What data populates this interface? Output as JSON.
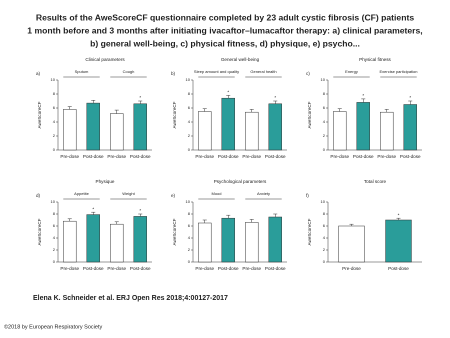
{
  "title": [
    "Results of the AweScoreCF questionnaire completed by 23 adult cystic fibrosis (CF) patients",
    "1 month before and 3 months after initiating ivacaftor–lumacaftor therapy: a) clinical parameters,",
    "b) general well-being, c) physical fitness, d) physique, e) psycho..."
  ],
  "citation": "Elena K. Schneider et al. ERJ Open Res 2018;4:00127-2017",
  "copyright": "©2018 by European Respiratory Society",
  "chart_data": [
    {
      "type": "bar",
      "label": "a)",
      "title": "Clinical parameters",
      "groups": [
        "Sputum",
        "Cough"
      ],
      "y_label": "AweScoreCF",
      "categories": [
        "Pre-dose",
        "Post-dose",
        "Pre-dose",
        "Post-dose"
      ],
      "values": [
        5.8,
        6.7,
        5.2,
        6.6
      ],
      "errors": [
        0.4,
        0.4,
        0.5,
        0.4
      ],
      "colors": [
        "#ffffff",
        "#2a9d9a",
        "#ffffff",
        "#2a9d9a"
      ],
      "annotations": [
        {
          "bar": 3,
          "text": "*"
        }
      ],
      "ylim": [
        0,
        10
      ],
      "yticks": [
        0,
        2,
        4,
        6,
        8,
        10
      ]
    },
    {
      "type": "bar",
      "label": "b)",
      "title": "General well-being",
      "groups": [
        "Sleep amount and quality",
        "General health"
      ],
      "y_label": "AweScoreCF",
      "categories": [
        "Pre-dose",
        "Post-dose",
        "Pre-dose",
        "Post-dose"
      ],
      "values": [
        5.5,
        7.4,
        5.4,
        6.6
      ],
      "errors": [
        0.4,
        0.4,
        0.4,
        0.4
      ],
      "colors": [
        "#ffffff",
        "#2a9d9a",
        "#ffffff",
        "#2a9d9a"
      ],
      "annotations": [
        {
          "bar": 1,
          "text": "*"
        },
        {
          "bar": 3,
          "text": "*"
        }
      ],
      "ylim": [
        0,
        10
      ],
      "yticks": [
        0,
        2,
        4,
        6,
        8,
        10
      ]
    },
    {
      "type": "bar",
      "label": "c)",
      "title": "Physical fitness",
      "groups": [
        "Energy",
        "Exercise participation"
      ],
      "y_label": "AweScoreCF",
      "categories": [
        "Pre-dose",
        "Post-dose",
        "Pre-dose",
        "Post-dose"
      ],
      "values": [
        5.5,
        6.8,
        5.4,
        6.5
      ],
      "errors": [
        0.4,
        0.5,
        0.4,
        0.5
      ],
      "colors": [
        "#ffffff",
        "#2a9d9a",
        "#ffffff",
        "#2a9d9a"
      ],
      "annotations": [
        {
          "bar": 1,
          "text": "*"
        },
        {
          "bar": 3,
          "text": "*"
        }
      ],
      "ylim": [
        0,
        10
      ],
      "yticks": [
        0,
        2,
        4,
        6,
        8,
        10
      ]
    },
    {
      "type": "bar",
      "label": "d)",
      "title": "Physique",
      "groups": [
        "Appetite",
        "Weight"
      ],
      "y_label": "AweScoreCF",
      "categories": [
        "Pre-dose",
        "Post-dose",
        "Pre-dose",
        "Post-dose"
      ],
      "values": [
        6.8,
        7.9,
        6.3,
        7.6
      ],
      "errors": [
        0.4,
        0.4,
        0.4,
        0.4
      ],
      "colors": [
        "#ffffff",
        "#2a9d9a",
        "#ffffff",
        "#2a9d9a"
      ],
      "annotations": [
        {
          "bar": 1,
          "text": "*"
        },
        {
          "bar": 3,
          "text": "*"
        }
      ],
      "ylim": [
        0,
        10
      ],
      "yticks": [
        0,
        2,
        4,
        6,
        8,
        10
      ]
    },
    {
      "type": "bar",
      "label": "e)",
      "title": "Psychological parameters",
      "groups": [
        "Mood",
        "Anxiety"
      ],
      "y_label": "AweScoreCF",
      "categories": [
        "Pre-dose",
        "Post-dose",
        "Pre-dose",
        "Post-dose"
      ],
      "values": [
        6.5,
        7.3,
        6.6,
        7.5
      ],
      "errors": [
        0.5,
        0.5,
        0.5,
        0.5
      ],
      "colors": [
        "#ffffff",
        "#2a9d9a",
        "#ffffff",
        "#2a9d9a"
      ],
      "ylim": [
        0,
        10
      ],
      "yticks": [
        0,
        2,
        4,
        6,
        8,
        10
      ]
    },
    {
      "type": "bar",
      "label": "f)",
      "title": "Total score",
      "y_label": "AweScoreCF",
      "categories": [
        "Pre-dose",
        "Post-dose"
      ],
      "values": [
        6.0,
        7.0
      ],
      "errors": [
        0.3,
        0.3
      ],
      "colors": [
        "#ffffff",
        "#2a9d9a"
      ],
      "annotations": [
        {
          "bar": 1,
          "text": "*"
        }
      ],
      "ylim": [
        0,
        10
      ],
      "yticks": [
        0,
        2,
        4,
        6,
        8,
        10
      ]
    }
  ]
}
